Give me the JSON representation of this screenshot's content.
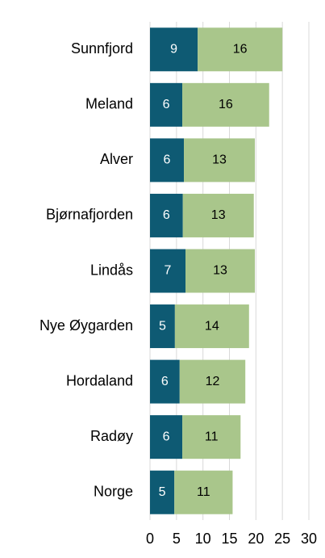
{
  "chart_data": {
    "type": "stacked-barh",
    "categories": [
      "Sunnfjord",
      "Meland",
      "Alver",
      "Bjørnafjorden",
      "Lindås",
      "Nye Øygarden",
      "Hordaland",
      "Radøy",
      "Norge"
    ],
    "series": [
      {
        "color": "#0e5a73",
        "values": [
          9.0,
          6.1,
          6.4,
          6.2,
          6.7,
          4.7,
          5.6,
          6.1,
          4.6
        ],
        "value_labels": [
          "9",
          "6",
          "6",
          "6",
          "7",
          "5",
          "6",
          "6",
          "5"
        ]
      },
      {
        "color": "#a9c68b",
        "values": [
          16.0,
          16.4,
          13.4,
          13.4,
          13.1,
          14.0,
          12.4,
          11.0,
          11.0
        ],
        "value_labels": [
          "16",
          "16",
          "13",
          "13",
          "13",
          "14",
          "12",
          "11",
          "11"
        ]
      }
    ],
    "xlim": [
      0,
      30
    ],
    "xticks": [
      0,
      5,
      10,
      15,
      20,
      25,
      30
    ],
    "grid": true
  }
}
